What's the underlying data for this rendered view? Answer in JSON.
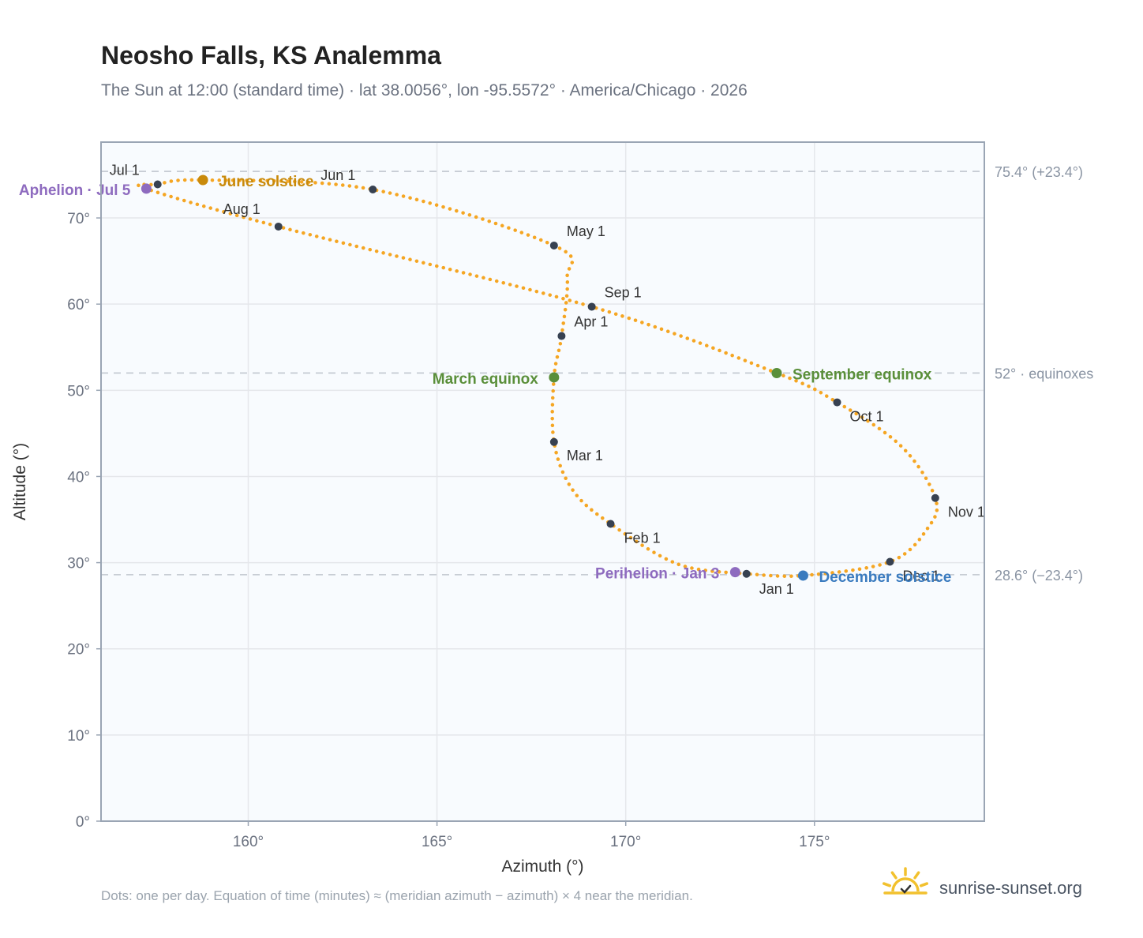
{
  "title": "Neosho Falls, KS Analemma",
  "subtitle": "The Sun at 12:00 (standard time) · lat 38.0056°, lon -95.5572° · America/Chicago · 2026",
  "footnote": "Dots: one per day. Equation of time (minutes) ≈ (meridian azimuth − azimuth) × 4 near the meridian.",
  "brand": "sunrise-sunset.org",
  "colors": {
    "curve": "#f5a623",
    "month_dot": "#374151",
    "june": "#c98a0b",
    "equinox": "#5a8f3a",
    "december": "#3a7bbf",
    "apsis": "#8e6bbf",
    "grid": "#e5e7eb",
    "frame": "#9aa5b4",
    "plot_bg": "#f8fbfe",
    "refline": "#c0c6ce"
  },
  "chart_data": {
    "type": "scatter",
    "title": "Neosho Falls, KS Analemma",
    "xlabel": "Azimuth (°)",
    "ylabel": "Altitude (°)",
    "xlim": [
      156.1,
      179.5
    ],
    "ylim": [
      0,
      78.8
    ],
    "x_ticks": [
      {
        "value": 160,
        "label": "160°"
      },
      {
        "value": 165,
        "label": "165°"
      },
      {
        "value": 170,
        "label": "170°"
      },
      {
        "value": 175,
        "label": "175°"
      }
    ],
    "y_ticks": [
      {
        "value": 0,
        "label": "0°"
      },
      {
        "value": 10,
        "label": "10°"
      },
      {
        "value": 20,
        "label": "20°"
      },
      {
        "value": 30,
        "label": "30°"
      },
      {
        "value": 40,
        "label": "40°"
      },
      {
        "value": 50,
        "label": "50°"
      },
      {
        "value": 60,
        "label": "60°"
      },
      {
        "value": 70,
        "label": "70°"
      }
    ],
    "grid": true,
    "reference_lines": [
      {
        "altitude": 75.4,
        "label": "75.4° (+23.4°)"
      },
      {
        "altitude": 52.0,
        "label": "52° · equinoxes"
      },
      {
        "altitude": 28.6,
        "label": "28.6° (−23.4°)"
      }
    ],
    "path_points": [
      {
        "az": 173.2,
        "alt": 28.7
      },
      {
        "az": 171.4,
        "alt": 29.8
      },
      {
        "az": 169.6,
        "alt": 34.5
      },
      {
        "az": 168.6,
        "alt": 38.4
      },
      {
        "az": 168.1,
        "alt": 44.0
      },
      {
        "az": 168.1,
        "alt": 51.5
      },
      {
        "az": 168.3,
        "alt": 56.3
      },
      {
        "az": 168.45,
        "alt": 63.0
      },
      {
        "az": 168.1,
        "alt": 66.8
      },
      {
        "az": 163.3,
        "alt": 73.3
      },
      {
        "az": 158.8,
        "alt": 74.4
      },
      {
        "az": 157.6,
        "alt": 73.9
      },
      {
        "az": 157.3,
        "alt": 73.4
      },
      {
        "az": 160.8,
        "alt": 69.0
      },
      {
        "az": 169.1,
        "alt": 59.7
      },
      {
        "az": 174.0,
        "alt": 52.0
      },
      {
        "az": 175.6,
        "alt": 48.6
      },
      {
        "az": 177.3,
        "alt": 43.5
      },
      {
        "az": 178.2,
        "alt": 37.5
      },
      {
        "az": 178.0,
        "alt": 34.0
      },
      {
        "az": 177.0,
        "alt": 30.1
      },
      {
        "az": 174.7,
        "alt": 28.5
      },
      {
        "az": 173.2,
        "alt": 28.7
      }
    ],
    "month_points": [
      {
        "label": "Jan 1",
        "az": 173.2,
        "alt": 28.7
      },
      {
        "label": "Feb 1",
        "az": 169.6,
        "alt": 34.5
      },
      {
        "label": "Mar 1",
        "az": 168.1,
        "alt": 44.0
      },
      {
        "label": "Apr 1",
        "az": 168.3,
        "alt": 56.3
      },
      {
        "label": "May 1",
        "az": 168.1,
        "alt": 66.8
      },
      {
        "label": "Jun 1",
        "az": 163.3,
        "alt": 73.3
      },
      {
        "label": "Jul 1",
        "az": 157.6,
        "alt": 73.9
      },
      {
        "label": "Aug 1",
        "az": 160.8,
        "alt": 69.0
      },
      {
        "label": "Sep 1",
        "az": 169.1,
        "alt": 59.7
      },
      {
        "label": "Oct 1",
        "az": 175.6,
        "alt": 48.6
      },
      {
        "label": "Nov 1",
        "az": 178.2,
        "alt": 37.5
      },
      {
        "label": "Dec 1",
        "az": 177.0,
        "alt": 30.1
      }
    ],
    "events": [
      {
        "label": "June solstice",
        "az": 158.8,
        "alt": 74.4,
        "color": "#c98a0b"
      },
      {
        "label": "Aphelion · Jul 5",
        "az": 157.3,
        "alt": 73.4,
        "color": "#8e6bbf"
      },
      {
        "label": "March equinox",
        "az": 168.1,
        "alt": 51.5,
        "color": "#5a8f3a"
      },
      {
        "label": "September equinox",
        "az": 174.0,
        "alt": 52.0,
        "color": "#5a8f3a"
      },
      {
        "label": "Perihelion · Jan 3",
        "az": 172.9,
        "alt": 28.9,
        "color": "#8e6bbf"
      },
      {
        "label": "December solstice",
        "az": 174.7,
        "alt": 28.5,
        "color": "#3a7bbf"
      }
    ]
  }
}
